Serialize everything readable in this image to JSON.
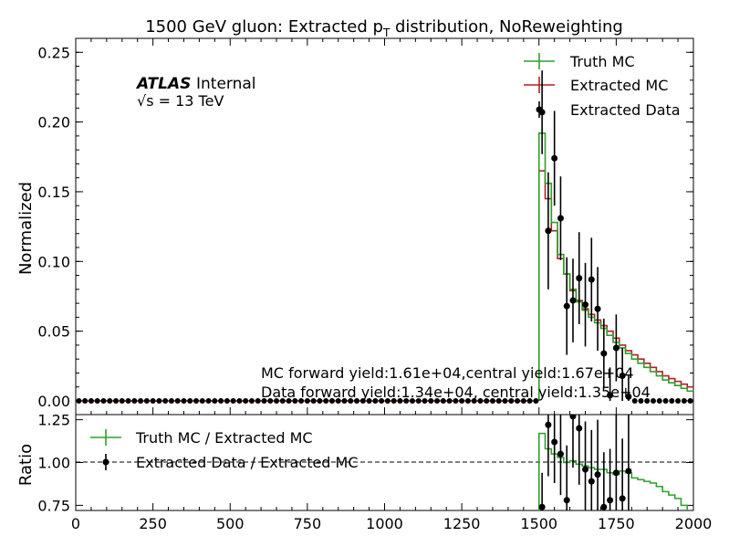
{
  "chart_data": {
    "type": "histogram",
    "title": "1500 GeV gluon: Extracted p",
    "title_sub": "T",
    "title_rest": " distribution, NoReweighting",
    "atlas_label": "ATLAS",
    "atlas_suffix": "Internal",
    "energy_label": "√s = 13 TeV",
    "ylabel": "Normalized",
    "ratio_ylabel": "Ratio",
    "xlim": [
      0,
      2000
    ],
    "ylim": [
      0,
      0.26
    ],
    "ratio_ylim": [
      0.72,
      1.28
    ],
    "xticks": [
      "0",
      "250",
      "500",
      "750",
      "1000",
      "1250",
      "1500",
      "1750",
      "2000"
    ],
    "yticks": [
      "0.00",
      "0.05",
      "0.10",
      "0.15",
      "0.20",
      "0.25"
    ],
    "ratio_yticks": [
      "0.75",
      "1.00",
      "1.25"
    ],
    "legend_placement": "upper-right",
    "legend": [
      {
        "key": "truth",
        "label": "Truth MC",
        "color": "#2ca02c",
        "style": "line"
      },
      {
        "key": "extracted",
        "label": "Extracted MC",
        "color": "#b22222",
        "style": "line"
      },
      {
        "key": "data",
        "label": "Extracted Data",
        "color": "#000000",
        "style": "marker"
      }
    ],
    "ratio_legend": [
      {
        "label": "Truth MC / Extracted MC",
        "color": "#2ca02c",
        "style": "line"
      },
      {
        "label": "Extracted Data / Extracted MC",
        "color": "#000000",
        "style": "marker"
      }
    ],
    "annotations": [
      "MC forward yield:1.61e+04,central yield:1.67e+04",
      "Data forward yield:1.34e+04, central yield:1.35e+04"
    ],
    "bin_width": 20,
    "zero_bins_up_to": 1500,
    "series": [
      {
        "name": "Truth MC",
        "color": "#2ca02c",
        "x": [
          1500,
          1520,
          1540,
          1560,
          1580,
          1600,
          1620,
          1640,
          1660,
          1680,
          1700,
          1720,
          1740,
          1760,
          1780,
          1800,
          1820,
          1840,
          1860,
          1880,
          1900,
          1920,
          1940,
          1960,
          1980
        ],
        "values": [
          0.192,
          0.156,
          0.128,
          0.105,
          0.091,
          0.08,
          0.071,
          0.065,
          0.06,
          0.056,
          0.052,
          0.047,
          0.042,
          0.038,
          0.034,
          0.03,
          0.027,
          0.024,
          0.021,
          0.018,
          0.015,
          0.013,
          0.011,
          0.009,
          0.007
        ]
      },
      {
        "name": "Extracted MC",
        "color": "#b22222",
        "x": [
          1500,
          1520,
          1540,
          1560,
          1580,
          1600,
          1620,
          1640,
          1660,
          1680,
          1700,
          1720,
          1740,
          1760,
          1780,
          1800,
          1820,
          1840,
          1860,
          1880,
          1900,
          1920,
          1940,
          1960,
          1980
        ],
        "values": [
          0.165,
          0.145,
          0.122,
          0.102,
          0.091,
          0.079,
          0.072,
          0.066,
          0.062,
          0.058,
          0.054,
          0.05,
          0.045,
          0.04,
          0.036,
          0.033,
          0.03,
          0.027,
          0.024,
          0.021,
          0.018,
          0.016,
          0.014,
          0.012,
          0.01
        ]
      },
      {
        "name": "Extracted Data",
        "color": "#000000",
        "x": [
          1510,
          1530,
          1550,
          1570,
          1590,
          1610,
          1630,
          1650,
          1670,
          1690,
          1710,
          1730,
          1750,
          1770,
          1790,
          1810,
          1830,
          1850,
          1870,
          1890,
          1910,
          1930,
          1950,
          1970,
          1990
        ],
        "values": [
          0.207,
          0.122,
          0.174,
          0.131,
          0.068,
          0.072,
          0.088,
          0.069,
          0.087,
          0.066,
          0.034,
          0.004,
          0.038,
          0.018,
          0.003,
          0,
          0,
          0,
          0,
          0,
          0,
          0,
          0,
          0,
          0
        ],
        "errors": [
          0.03,
          0.042,
          0.034,
          0.03,
          0.035,
          0.03,
          0.033,
          0.03,
          0.03,
          0.03,
          0.025,
          0.02,
          0.024,
          0.02,
          0.015,
          0,
          0,
          0,
          0,
          0,
          0,
          0,
          0,
          0,
          0
        ]
      }
    ],
    "ratio": {
      "truth_over_extracted": [
        1.17,
        1.08,
        1.05,
        1.03,
        1.0,
        1.01,
        0.99,
        0.98,
        0.97,
        0.96,
        0.96,
        0.94,
        0.93,
        0.95,
        0.94,
        0.91,
        0.9,
        0.89,
        0.88,
        0.86,
        0.83,
        0.81,
        0.79,
        0.75,
        0.7
      ],
      "data_over_extracted_x": [
        1510,
        1530,
        1550,
        1570,
        1590,
        1610,
        1630,
        1650,
        1670,
        1690,
        1710,
        1730,
        1750,
        1770,
        1790
      ],
      "data_over_extracted": [
        0.74,
        1.22,
        1.12,
        1.05,
        0.78,
        1.27,
        1.2,
        0.96,
        0.89,
        0.93,
        0.74,
        0.78,
        0.94,
        0.79,
        0.95
      ],
      "errors": [
        0.2,
        0.3,
        0.24,
        0.24,
        0.32,
        0.3,
        0.33,
        0.28,
        0.3,
        0.32,
        0.32,
        0.3,
        0.4,
        0.35,
        0.38
      ]
    }
  }
}
